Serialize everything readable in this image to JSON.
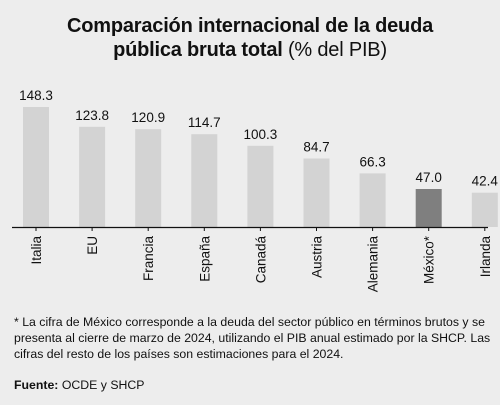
{
  "title": {
    "line1": "Comparación internacional de la deuda",
    "line2_bold": "pública bruta total",
    "line2_unit": "(% del PIB)"
  },
  "chart_data": {
    "type": "bar",
    "title": "Comparación internacional de la deuda pública bruta total (% del PIB)",
    "categories": [
      "Italia",
      "EU",
      "Francia",
      "España",
      "Canadá",
      "Austria",
      "Alemania",
      "México*",
      "Irlanda"
    ],
    "values": [
      148.3,
      123.8,
      120.9,
      114.7,
      100.3,
      84.7,
      66.3,
      47.0,
      42.4
    ],
    "value_labels": [
      "148.3",
      "123.8",
      "120.9",
      "114.7",
      "100.3",
      "84.7",
      "66.3",
      "47.0",
      "42.4"
    ],
    "highlight_category": "México*",
    "colors": {
      "bar": "#d3d3d3",
      "highlight": "#7f7f7f",
      "axis": "#111111"
    },
    "ylim": [
      0,
      148.3
    ],
    "grid": false,
    "legend": "none"
  },
  "footnote": "* La cifra de México corresponde a la deuda del sector público en términos brutos y se presenta al cierre de marzo de 2024, utilizando el PIB anual estimado por la SHCP. Las cifras del resto de los países son estimaciones para el 2024.",
  "source": {
    "label": "Fuente:",
    "text": "OCDE y SHCP"
  }
}
